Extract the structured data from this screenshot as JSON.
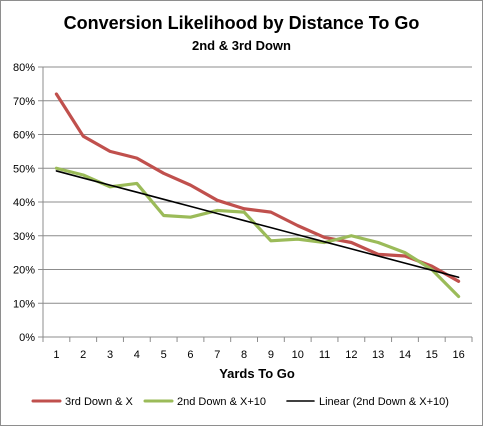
{
  "chart_data": {
    "type": "line",
    "title": "Conversion Likelihood by Distance To Go",
    "subtitle": "2nd & 3rd Down",
    "xlabel": "Yards To Go",
    "ylabel": "",
    "x": [
      1,
      2,
      3,
      4,
      5,
      6,
      7,
      8,
      9,
      10,
      11,
      12,
      13,
      14,
      15,
      16
    ],
    "x_ticks": [
      "1",
      "2",
      "3",
      "4",
      "5",
      "6",
      "7",
      "8",
      "9",
      "10",
      "11",
      "12",
      "13",
      "14",
      "15",
      "16"
    ],
    "y_ticks": [
      "0%",
      "10%",
      "20%",
      "30%",
      "40%",
      "50%",
      "60%",
      "70%",
      "80%"
    ],
    "ylim": [
      0,
      80
    ],
    "grid": "horizontal",
    "legend_position": "bottom",
    "series": [
      {
        "name": "3rd Down & X",
        "color": "#c0504d",
        "style": "solid",
        "values": [
          72,
          59.5,
          55,
          53,
          48.5,
          45,
          40.5,
          38,
          37,
          33,
          29.5,
          28,
          24.5,
          24,
          21,
          16.5
        ]
      },
      {
        "name": "2nd Down & X+10",
        "color": "#9bbb59",
        "style": "solid",
        "values": [
          50,
          48,
          44.5,
          45.5,
          36,
          35.5,
          37.5,
          37,
          28.5,
          29,
          28,
          30,
          28,
          25,
          20,
          12
        ]
      },
      {
        "name": "Linear (2nd Down & X+10)",
        "color": "#000000",
        "style": "trendline",
        "values": [
          49.2,
          47.1,
          45.0,
          42.9,
          40.8,
          38.7,
          36.6,
          34.5,
          32.4,
          30.3,
          28.2,
          26.1,
          24.0,
          21.9,
          19.8,
          17.7
        ]
      }
    ]
  }
}
